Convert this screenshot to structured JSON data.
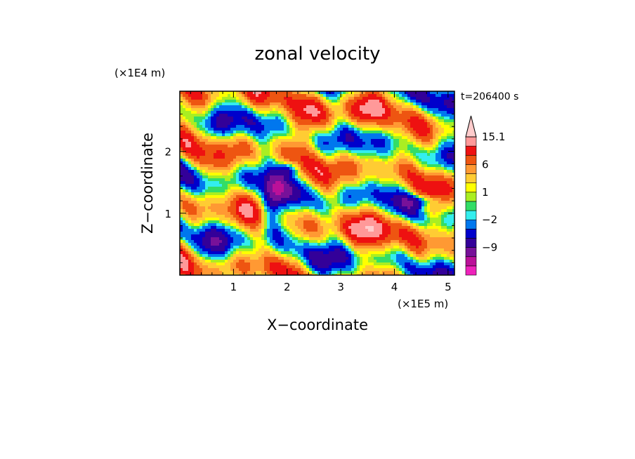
{
  "chart_data": {
    "type": "heatmap",
    "title": "zonal velocity",
    "xlabel": "X−coordinate",
    "ylabel": "Z−coordinate",
    "x_scale_label": "(×1E5 m)",
    "y_scale_label": "(×1E4 m)",
    "time_label": "t=206400 s",
    "xlim": [
      0,
      5.12
    ],
    "ylim": [
      0,
      2.97
    ],
    "x_ticks": [
      1,
      2,
      3,
      4,
      5
    ],
    "x_tick_labels": [
      "1",
      "2",
      "3",
      "4",
      "5"
    ],
    "y_ticks": [
      1,
      2
    ],
    "y_tick_labels": [
      "1",
      "2"
    ],
    "colorbar": {
      "levels": [
        -15,
        -12,
        -9,
        -6,
        -4,
        -2,
        -1,
        0,
        1,
        2,
        4,
        6,
        9,
        12,
        15.1
      ],
      "colors": [
        "#ee22bb",
        "#bb1199",
        "#771199",
        "#330099",
        "#0000cc",
        "#0077ee",
        "#33eeee",
        "#33dd66",
        "#aaee22",
        "#ffff00",
        "#ffcc33",
        "#ff9933",
        "#ee5511",
        "#ee1111",
        "#ff9999",
        "#ffcccc"
      ],
      "labeled_values": [
        15.1,
        6,
        1,
        -2,
        -9
      ],
      "labels": [
        "15.1",
        "6",
        "1",
        "−2",
        "−9"
      ]
    }
  }
}
